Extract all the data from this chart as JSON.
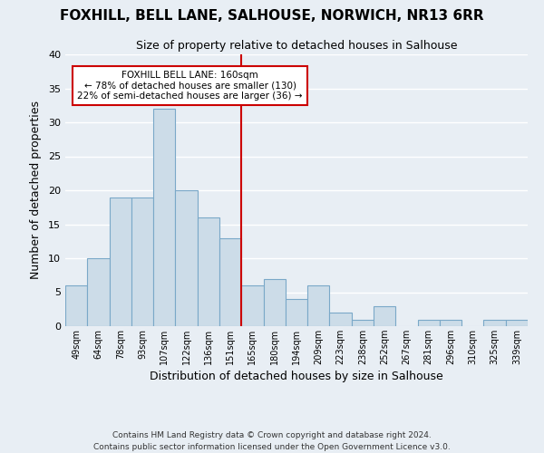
{
  "title": "FOXHILL, BELL LANE, SALHOUSE, NORWICH, NR13 6RR",
  "subtitle": "Size of property relative to detached houses in Salhouse",
  "xlabel": "Distribution of detached houses by size in Salhouse",
  "ylabel": "Number of detached properties",
  "bar_color": "#ccdce8",
  "bar_edge_color": "#7aa8c8",
  "categories": [
    "49sqm",
    "64sqm",
    "78sqm",
    "93sqm",
    "107sqm",
    "122sqm",
    "136sqm",
    "151sqm",
    "165sqm",
    "180sqm",
    "194sqm",
    "209sqm",
    "223sqm",
    "238sqm",
    "252sqm",
    "267sqm",
    "281sqm",
    "296sqm",
    "310sqm",
    "325sqm",
    "339sqm"
  ],
  "values": [
    6,
    10,
    19,
    19,
    32,
    20,
    16,
    13,
    6,
    7,
    4,
    6,
    2,
    1,
    3,
    0,
    1,
    1,
    0,
    1,
    1
  ],
  "ylim": [
    0,
    40
  ],
  "yticks": [
    0,
    5,
    10,
    15,
    20,
    25,
    30,
    35,
    40
  ],
  "property_line_color": "#cc0000",
  "annotation_title": "FOXHILL BELL LANE: 160sqm",
  "annotation_line1": "← 78% of detached houses are smaller (130)",
  "annotation_line2": "22% of semi-detached houses are larger (36) →",
  "annotation_box_color": "#ffffff",
  "annotation_box_edge": "#cc0000",
  "footer1": "Contains HM Land Registry data © Crown copyright and database right 2024.",
  "footer2": "Contains public sector information licensed under the Open Government Licence v3.0.",
  "background_color": "#e8eef4",
  "grid_color": "#ffffff"
}
